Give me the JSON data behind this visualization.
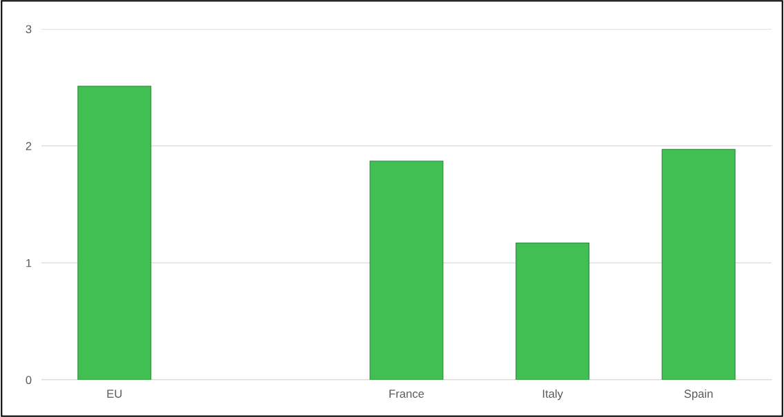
{
  "chart_data": {
    "type": "bar",
    "categories": [
      "EU",
      null,
      "France",
      "Italy",
      "Spain"
    ],
    "values": [
      2.51,
      null,
      1.87,
      1.17,
      1.97
    ],
    "color": "#41bf52",
    "ylim": [
      0,
      3
    ],
    "yticks": [
      0,
      1,
      2,
      3
    ],
    "grid": "y"
  }
}
